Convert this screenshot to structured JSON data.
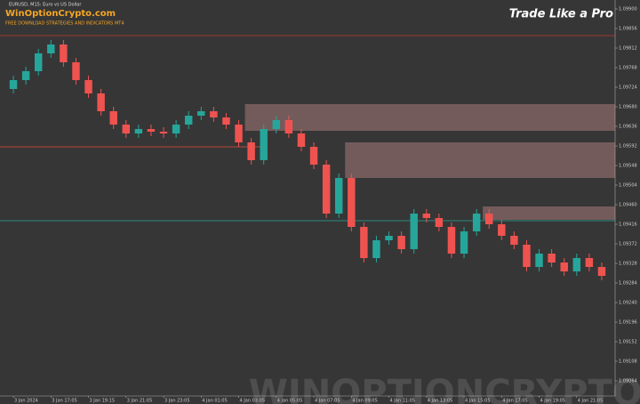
{
  "chart_data": {
    "type": "candlestick",
    "title": "EURUSD, M15: Euro vs US Dollar",
    "brand": "WinOptionCrypto.com",
    "subtitle": "FREE DOWNLOAD STRATEGIES AND INDICATORS MT4",
    "slogan": "Trade Like a Pro",
    "watermark": "WINOPTIONCRYPTO.COM",
    "up_color": "#26a69a",
    "down_color": "#ef5350",
    "categories": [
      "3 Jan 2024",
      null,
      null,
      "3 Jan 17:05",
      null,
      null,
      "3 Jan 19:15",
      null,
      null,
      "3 Jan 21:05",
      null,
      null,
      "3 Jan 23:05",
      null,
      null,
      "4 Jan 01:05",
      null,
      null,
      "4 Jan 03:05",
      null,
      null,
      "4 Jan 05:05",
      null,
      null,
      "4 Jan 07:05",
      null,
      null,
      "4 Jan 09:05",
      null,
      null,
      "4 Jan 11:05",
      null,
      null,
      "4 Jan 13:05",
      null,
      null,
      "4 Jan 15:05",
      null,
      null,
      "4 Jan 17:05",
      null,
      null,
      "4 Jan 19:05",
      null,
      null,
      "4 Jan 21:05",
      null,
      null
    ],
    "open": [
      1.0972,
      1.0974,
      1.0976,
      1.098,
      1.0982,
      1.0978,
      1.0974,
      1.0971,
      1.0967,
      1.0964,
      1.0962,
      1.0963,
      1.09624,
      1.0962,
      1.0964,
      1.0966,
      1.0967,
      1.09656,
      1.0964,
      1.096,
      1.0956,
      1.0963,
      1.0965,
      1.0962,
      1.0959,
      1.0955,
      1.0944,
      1.0952,
      1.0941,
      1.0934,
      1.0938,
      1.0939,
      1.0936,
      1.0944,
      1.0943,
      1.0941,
      1.0935,
      1.094,
      1.0944,
      1.09416,
      1.0939,
      1.0937,
      1.0932,
      1.0935,
      1.0933,
      1.0931,
      1.0934,
      1.0932
    ],
    "high": [
      1.0975,
      1.0977,
      1.0981,
      1.0983,
      1.0983,
      1.0979,
      1.0975,
      1.0972,
      1.0968,
      1.0965,
      1.0964,
      1.0964,
      1.09634,
      1.0965,
      1.0967,
      1.0968,
      1.0968,
      1.09666,
      1.0965,
      1.0961,
      1.0964,
      1.0966,
      1.0966,
      1.0963,
      1.096,
      1.0956,
      1.0953,
      1.0953,
      1.0942,
      1.0939,
      1.094,
      1.094,
      1.0945,
      1.0945,
      1.0944,
      1.0942,
      1.0941,
      1.0945,
      1.0945,
      1.09426,
      1.094,
      1.0938,
      1.0936,
      1.0936,
      1.0934,
      1.0935,
      1.0935,
      1.0933
    ],
    "low": [
      1.0971,
      1.0973,
      1.0975,
      1.0979,
      1.0977,
      1.0973,
      1.097,
      1.0966,
      1.0963,
      1.0961,
      1.0961,
      1.09614,
      1.0961,
      1.0961,
      1.0963,
      1.0965,
      1.09646,
      1.0963,
      1.0959,
      1.0955,
      1.0955,
      1.0962,
      1.0961,
      1.0958,
      1.0954,
      1.0943,
      1.0943,
      1.094,
      1.0933,
      1.0933,
      1.0937,
      1.0935,
      1.0935,
      1.0942,
      1.094,
      1.0934,
      1.0934,
      1.0939,
      1.09406,
      1.0938,
      1.0936,
      1.0931,
      1.0931,
      1.0932,
      1.093,
      1.093,
      1.0931,
      1.0929
    ],
    "close": [
      1.0974,
      1.0976,
      1.098,
      1.0982,
      1.0978,
      1.0974,
      1.0971,
      1.0967,
      1.0964,
      1.0962,
      1.0963,
      1.09624,
      1.0962,
      1.0964,
      1.0966,
      1.0967,
      1.09656,
      1.0964,
      1.096,
      1.0956,
      1.0963,
      1.0965,
      1.0962,
      1.0959,
      1.0955,
      1.0944,
      1.0952,
      1.0941,
      1.0934,
      1.0938,
      1.0939,
      1.0936,
      1.0944,
      1.0943,
      1.0941,
      1.0935,
      1.094,
      1.0944,
      1.09416,
      1.0939,
      1.0937,
      1.0932,
      1.0935,
      1.0933,
      1.0931,
      1.0934,
      1.0932,
      1.093
    ],
    "zones": [
      {
        "top": 1.09686,
        "bottom": 1.09626,
        "from": 19
      },
      {
        "top": 1.096,
        "bottom": 1.0952,
        "from": 27
      },
      {
        "top": 1.09456,
        "bottom": 1.09426,
        "from": 38
      }
    ],
    "zone_color": "#e8a0a0",
    "levels": [
      {
        "value": 1.0984,
        "color": "#c0392b"
      },
      {
        "value": 1.0959,
        "color": "#e74c3c",
        "to": 20
      },
      {
        "value": 1.09424,
        "color": "#26a69a"
      }
    ],
    "ylim": [
      1.0903,
      1.0992
    ],
    "yticks": [
      {
        "value": 1.099,
        "label": "1.09900"
      },
      1.09856,
      1.09812,
      1.09768,
      1.09724,
      {
        "value": 1.0968,
        "label": "1.09680"
      },
      1.09636,
      1.09592,
      1.09548,
      1.09504,
      {
        "value": 1.0946,
        "label": "1.09460"
      },
      1.09416,
      1.09372,
      1.09328,
      1.09284,
      {
        "value": 1.0924,
        "label": "1.09240"
      },
      1.09196,
      1.09152,
      1.09108,
      1.09064
    ],
    "grid": false
  }
}
